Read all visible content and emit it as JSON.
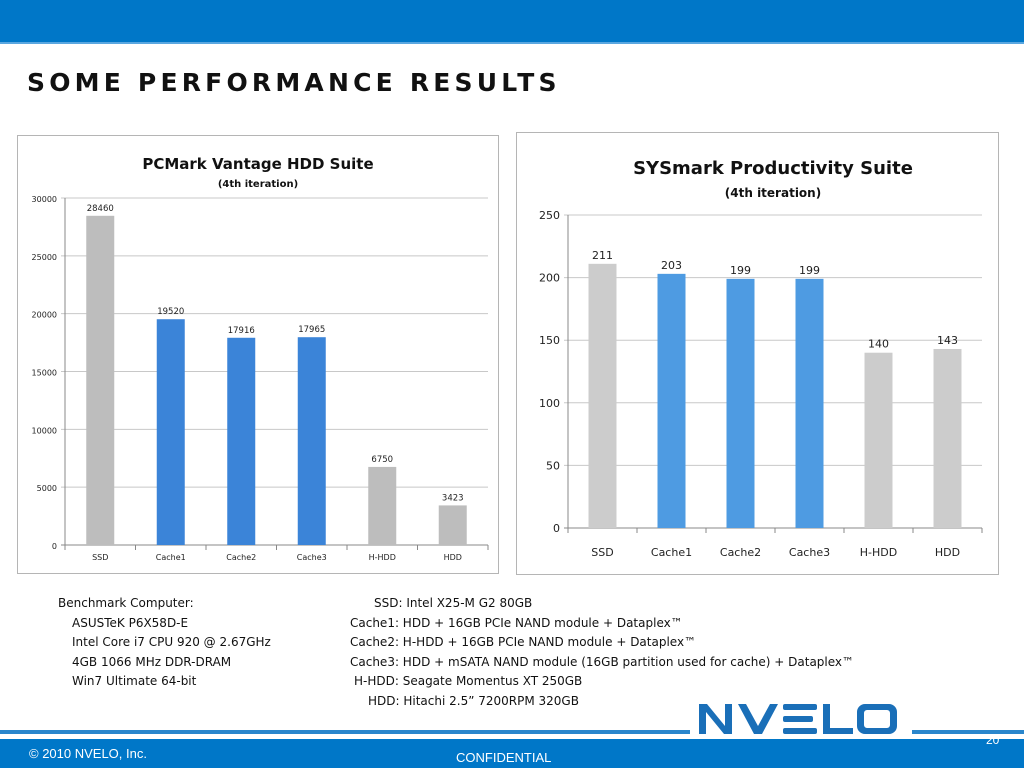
{
  "slide": {
    "title": "SOME PERFORMANCE RESULTS",
    "page_number": "20",
    "footer_copyright": "© 2010 NVELO, Inc.",
    "footer_confidential": "CONFIDENTIAL",
    "logo_text": "NVELO",
    "colors": {
      "brand_blue": "#0077c8",
      "bar_gray": "#c0c0c0",
      "bar_blue": "#3b84d8",
      "bar_blue_light": "#4e9be2"
    }
  },
  "benchmark_computer": {
    "heading": "Benchmark Computer:",
    "items": [
      "ASUSTeK P6X58D-E",
      "Intel Core i7 CPU 920 @ 2.67GHz",
      "4GB 1066 MHz DDR-DRAM",
      "Win7 Ultimate 64-bit"
    ]
  },
  "configurations": [
    {
      "text": "SSD: Intel X25-M G2 80GB"
    },
    {
      "text": "Cache1: HDD + 16GB PCIe NAND module + Dataplex™"
    },
    {
      "text": "Cache2: H-HDD +  16GB PCIe NAND module + Dataplex™"
    },
    {
      "text": "Cache3: HDD + mSATA NAND module (16GB partition used for cache)  + Dataplex™"
    },
    {
      "text": "H-HDD: Seagate Momentus XT 250GB"
    },
    {
      "text": "HDD: Hitachi 2.5” 7200RPM 320GB"
    }
  ],
  "chart_data": [
    {
      "type": "bar",
      "title": "PCMark Vantage HDD Suite",
      "subtitle": "(4th iteration)",
      "xlabel": "",
      "ylabel": "",
      "categories": [
        "SSD",
        "Cache1",
        "Cache2",
        "Cache3",
        "H-HDD",
        "HDD"
      ],
      "values": [
        28460,
        19520,
        17916,
        17965,
        6750,
        3423
      ],
      "data_labels": [
        "28460",
        "19520",
        "17916",
        "17965",
        "6750",
        "3423"
      ],
      "bar_colors": [
        "#bdbdbd",
        "#3b84d8",
        "#3b84d8",
        "#3b84d8",
        "#bdbdbd",
        "#bdbdbd"
      ],
      "ylim": [
        0,
        30000
      ],
      "yticks": [
        0,
        5000,
        10000,
        15000,
        20000,
        25000,
        30000
      ],
      "ytick_labels": [
        "0",
        "5000",
        "10000",
        "15000",
        "20000",
        "25000",
        "30000"
      ],
      "grid": true,
      "legend": "none"
    },
    {
      "type": "bar",
      "title": "SYSmark Productivity Suite",
      "subtitle": "(4th iteration)",
      "xlabel": "",
      "ylabel": "",
      "categories": [
        "SSD",
        "Cache1",
        "Cache2",
        "Cache3",
        "H-HDD",
        "HDD"
      ],
      "values": [
        211,
        203,
        199,
        199,
        140,
        143
      ],
      "data_labels": [
        "211",
        "203",
        "199",
        "199",
        "140",
        "143"
      ],
      "bar_colors": [
        "#cccccc",
        "#4e9be2",
        "#4e9be2",
        "#4e9be2",
        "#cccccc",
        "#cccccc"
      ],
      "ylim": [
        0,
        250
      ],
      "yticks": [
        0,
        50,
        100,
        150,
        200,
        250
      ],
      "ytick_labels": [
        "0",
        "50",
        "100",
        "150",
        "200",
        "250"
      ],
      "grid": true,
      "legend": "none"
    }
  ]
}
